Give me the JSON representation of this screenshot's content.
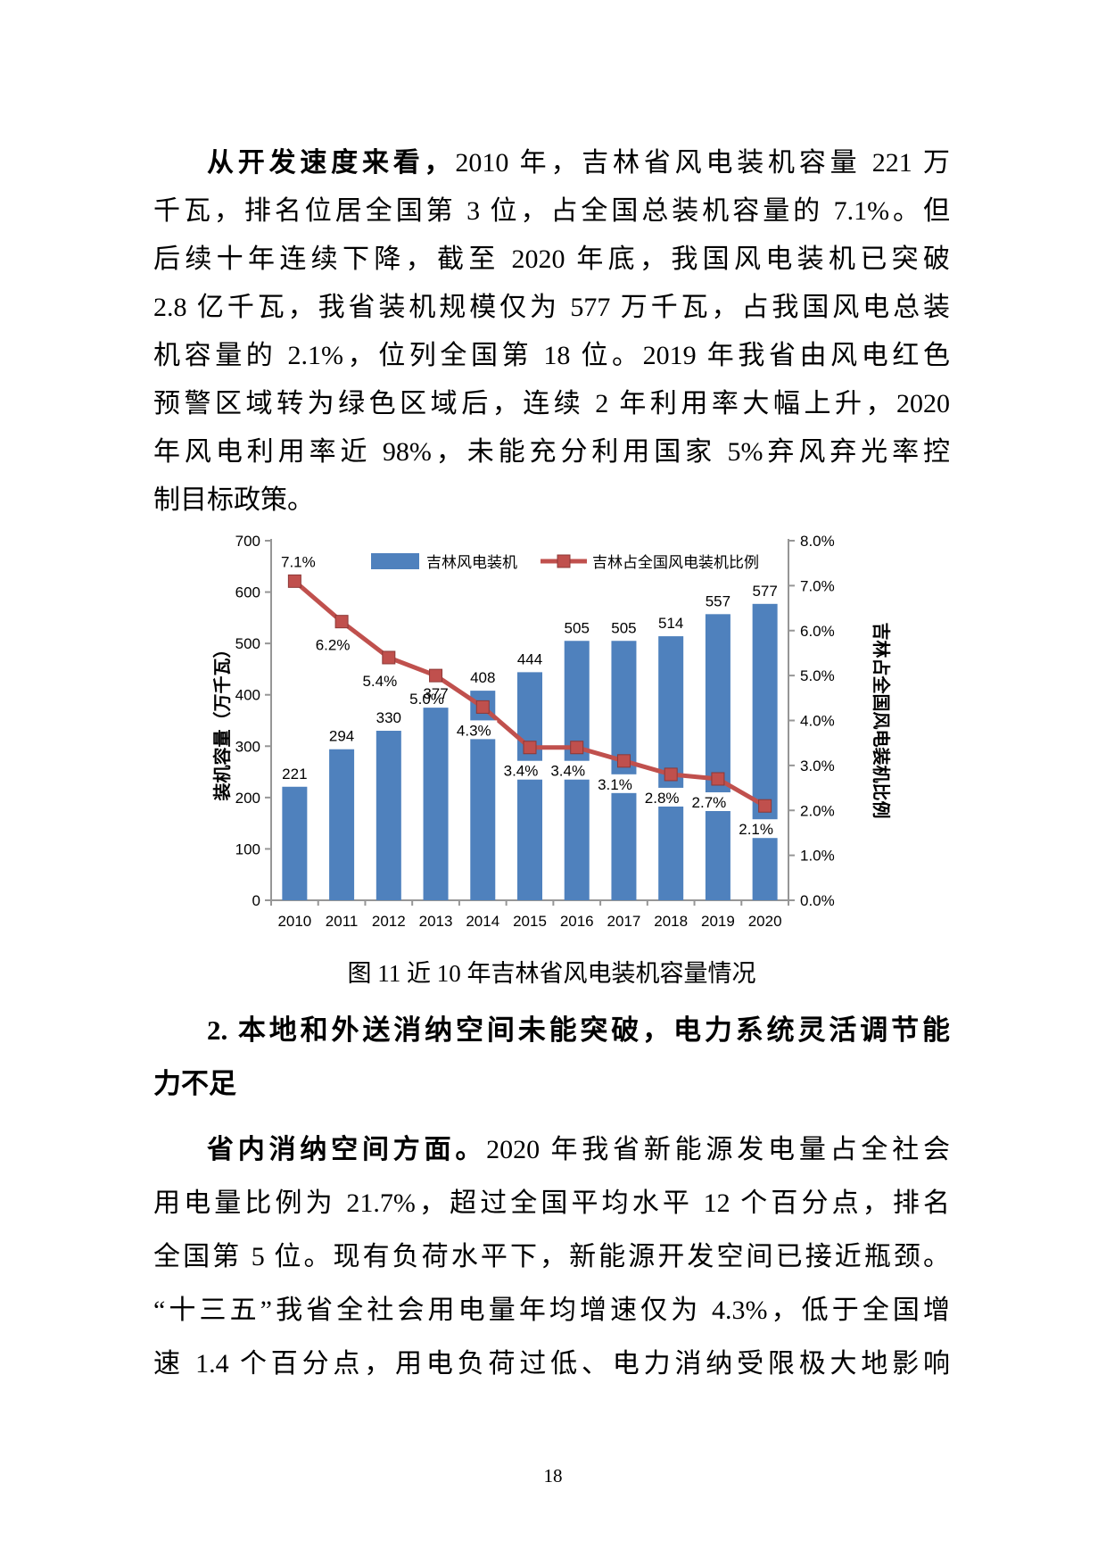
{
  "page": {
    "number": "18"
  },
  "para1": {
    "lead": "从开发速度来看，",
    "lines": [
      "2010 年，吉林省风电装机容量 221 万",
      "千瓦，排名位居全国第 3 位，占全国总装机容量的 7.1%。但",
      "后续十年连续下降，截至 2020 年底，我国风电装机已突破",
      "2.8 亿千瓦，我省装机规模仅为 577 万千瓦，占我国风电总装",
      "机容量的 2.1%，位列全国第 18 位。2019 年我省由风电红色",
      "预警区域转为绿色区域后，连续 2 年利用率大幅上升，2020",
      "年风电利用率近 98%，未能充分利用国家 5%弃风弃光率控",
      "制目标政策。"
    ]
  },
  "figure": {
    "caption": "图 11  近 10 年吉林省风电装机容量情况"
  },
  "heading2": {
    "line1": "2. 本地和外送消纳空间未能突破，电力系统灵活调节能",
    "line2": "力不足"
  },
  "para2": {
    "lead": "省内消纳空间方面。",
    "lines": [
      "2020 年我省新能源发电量占全社会",
      "用电量比例为 21.7%，超过全国平均水平 12 个百分点，排名",
      "全国第 5 位。现有负荷水平下，新能源开发空间已接近瓶颈。",
      "“十三五”我省全社会用电量年均增速仅为 4.3%，低于全国增",
      "速 1.4 个百分点，用电负荷过低、电力消纳受限极大地影响"
    ]
  },
  "chart_data": {
    "type": "bar",
    "combo": "bar+line",
    "title": "",
    "categories": [
      "2010",
      "2011",
      "2012",
      "2013",
      "2014",
      "2015",
      "2016",
      "2017",
      "2018",
      "2019",
      "2020"
    ],
    "series": [
      {
        "name": "吉林风电装机",
        "type": "bar",
        "axis": "left",
        "color": "#4F81BD",
        "values": [
          221,
          294,
          330,
          377,
          408,
          444,
          505,
          505,
          514,
          557,
          577
        ]
      },
      {
        "name": "吉林占全国风电装机比例",
        "type": "line",
        "axis": "right",
        "color": "#C0504D",
        "unit": "%",
        "values": [
          7.1,
          6.2,
          5.4,
          5.0,
          4.3,
          3.4,
          3.4,
          3.1,
          2.8,
          2.7,
          2.1
        ]
      }
    ],
    "left_axis": {
      "title": "装机容量（万千瓦）",
      "min": 0,
      "max": 700,
      "ticks": [
        0,
        100,
        200,
        300,
        400,
        500,
        600,
        700
      ]
    },
    "right_axis": {
      "title": "吉林占全国风电装机比例",
      "min": 0,
      "max": 8,
      "tick_labels": [
        "0.0%",
        "1.0%",
        "2.0%",
        "3.0%",
        "4.0%",
        "5.0%",
        "6.0%",
        "7.0%",
        "8.0%"
      ]
    },
    "legend_position": "top",
    "grid": false,
    "axis_color": "#969696"
  }
}
